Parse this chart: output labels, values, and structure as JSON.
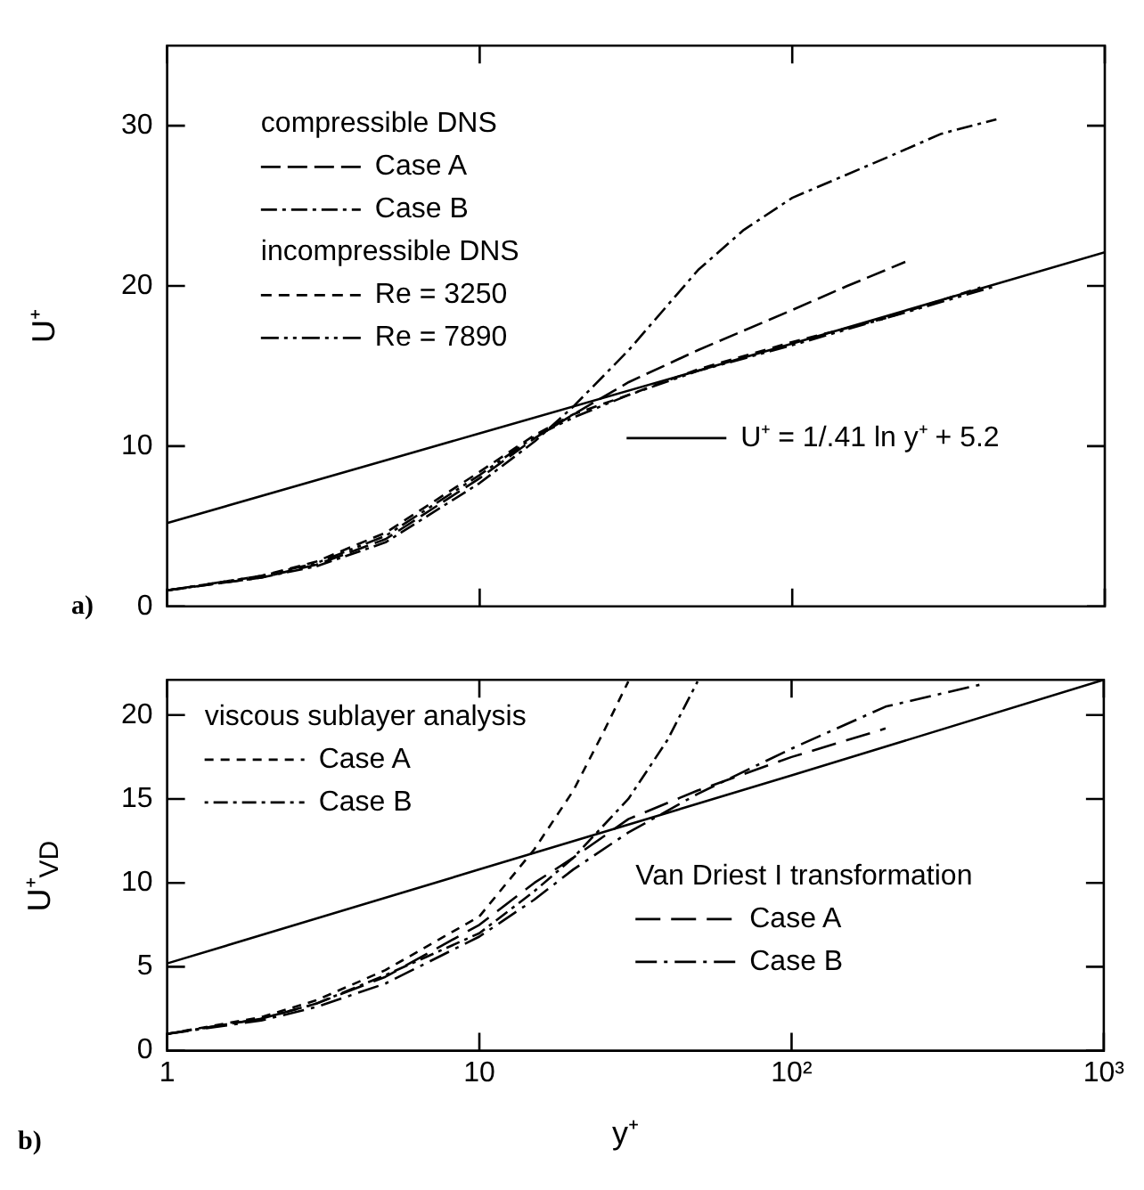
{
  "chart_data": [
    {
      "type": "line",
      "ylabel": "U⁺",
      "xlim": [
        1,
        1000
      ],
      "ylim": [
        0,
        35
      ],
      "yticks": [
        0,
        10,
        20,
        30
      ],
      "tick_labels": "y",
      "log": "x",
      "grid": false,
      "legend": "top left",
      "marker": "none",
      "annotations": [
        "compressible DNS",
        "incompressible DNS",
        "a)"
      ],
      "series": [
        {
          "name": "Case A",
          "color": "#000000",
          "line_style": "dashed",
          "x": [
            1,
            2,
            3,
            5,
            10,
            15,
            20,
            30,
            50,
            100,
            150,
            230
          ],
          "values": [
            1,
            1.8,
            2.6,
            4.2,
            8,
            10.5,
            12,
            14,
            16,
            18.5,
            20,
            21.5
          ]
        },
        {
          "name": "Case B",
          "color": "#000000",
          "line_style": "dashed",
          "x": [
            1,
            2,
            3,
            5,
            10,
            15,
            20,
            30,
            50,
            70,
            100,
            200,
            300,
            450
          ],
          "values": [
            1,
            1.8,
            2.5,
            4,
            7.7,
            10.3,
            12.5,
            16,
            21,
            23.5,
            25.5,
            28,
            29.5,
            30.4
          ]
        },
        {
          "name": "Re = 3250",
          "color": "#000000",
          "line_style": "dashed",
          "x": [
            1,
            2,
            3,
            5,
            10,
            15,
            20,
            30,
            50,
            100,
            200,
            400
          ],
          "values": [
            1,
            1.9,
            2.8,
            4.6,
            8.4,
            10.7,
            12,
            13.2,
            14.8,
            16.5,
            18,
            19.9
          ]
        },
        {
          "name": "Re = 7890",
          "color": "#000000",
          "line_style": "dashed",
          "x": [
            1,
            2,
            3,
            5,
            10,
            15,
            20,
            30,
            50,
            100,
            200,
            450
          ],
          "values": [
            1,
            1.9,
            2.7,
            4.4,
            8.2,
            10.6,
            11.8,
            13.2,
            14.7,
            16.3,
            18,
            20
          ]
        },
        {
          "name": "U⁺ = 1/.41 ln y⁺ + 5.2",
          "color": "#000000",
          "line_style": "solid",
          "x": [
            1,
            10,
            100,
            1000
          ],
          "values": [
            5.2,
            10.8,
            16.4,
            22.1
          ]
        }
      ]
    },
    {
      "type": "line",
      "xlabel": "y⁺",
      "ylabel": "U⁺$_{VD}$",
      "xlim": [
        1,
        1000
      ],
      "xticks": [
        1,
        10,
        {
          "value": 100,
          "label": "10²"
        },
        {
          "value": 1000,
          "label": "10³"
        }
      ],
      "ylim": [
        0,
        22.1
      ],
      "yticks": [
        0,
        5,
        10,
        15,
        20
      ],
      "log": "x",
      "grid": false,
      "legend": "top left",
      "marker": "none",
      "annotations": [
        "viscous sublayer analysis",
        "Van Driest I transformation",
        "b)"
      ],
      "series": [
        {
          "name": "Case A",
          "color": "#000000",
          "line_style": "dashed",
          "x": [
            1,
            2,
            3,
            5,
            10,
            15,
            20,
            25,
            30
          ],
          "values": [
            1,
            2,
            3,
            4.8,
            8,
            12,
            15.5,
            19,
            22
          ]
        },
        {
          "name": "Case B",
          "color": "#000000",
          "line_style": "dashed",
          "x": [
            1,
            2,
            3,
            5,
            10,
            15,
            20,
            30,
            40,
            50
          ],
          "values": [
            1,
            1.9,
            2.8,
            4.5,
            7,
            9.5,
            11.5,
            15,
            18.5,
            22
          ]
        },
        {
          "name": "Case A",
          "color": "#000000",
          "line_style": "dashed",
          "x": [
            1,
            2,
            3,
            5,
            10,
            15,
            20,
            30,
            50,
            100,
            200
          ],
          "values": [
            1,
            1.9,
            2.8,
            4.4,
            7.5,
            10,
            11.5,
            13.8,
            15.5,
            17.5,
            19.2
          ]
        },
        {
          "name": "Case B",
          "color": "#000000",
          "line_style": "dashed",
          "x": [
            1,
            2,
            3,
            5,
            10,
            15,
            20,
            30,
            50,
            100,
            200,
            400
          ],
          "values": [
            1,
            1.8,
            2.6,
            4,
            6.8,
            9,
            10.8,
            13,
            15.3,
            18,
            20.5,
            21.8
          ]
        },
        {
          "color": "#000000",
          "line_style": "solid",
          "x": [
            1,
            10,
            100,
            1000
          ],
          "values": [
            5.2,
            10.8,
            16.4,
            22.1
          ]
        }
      ]
    }
  ]
}
